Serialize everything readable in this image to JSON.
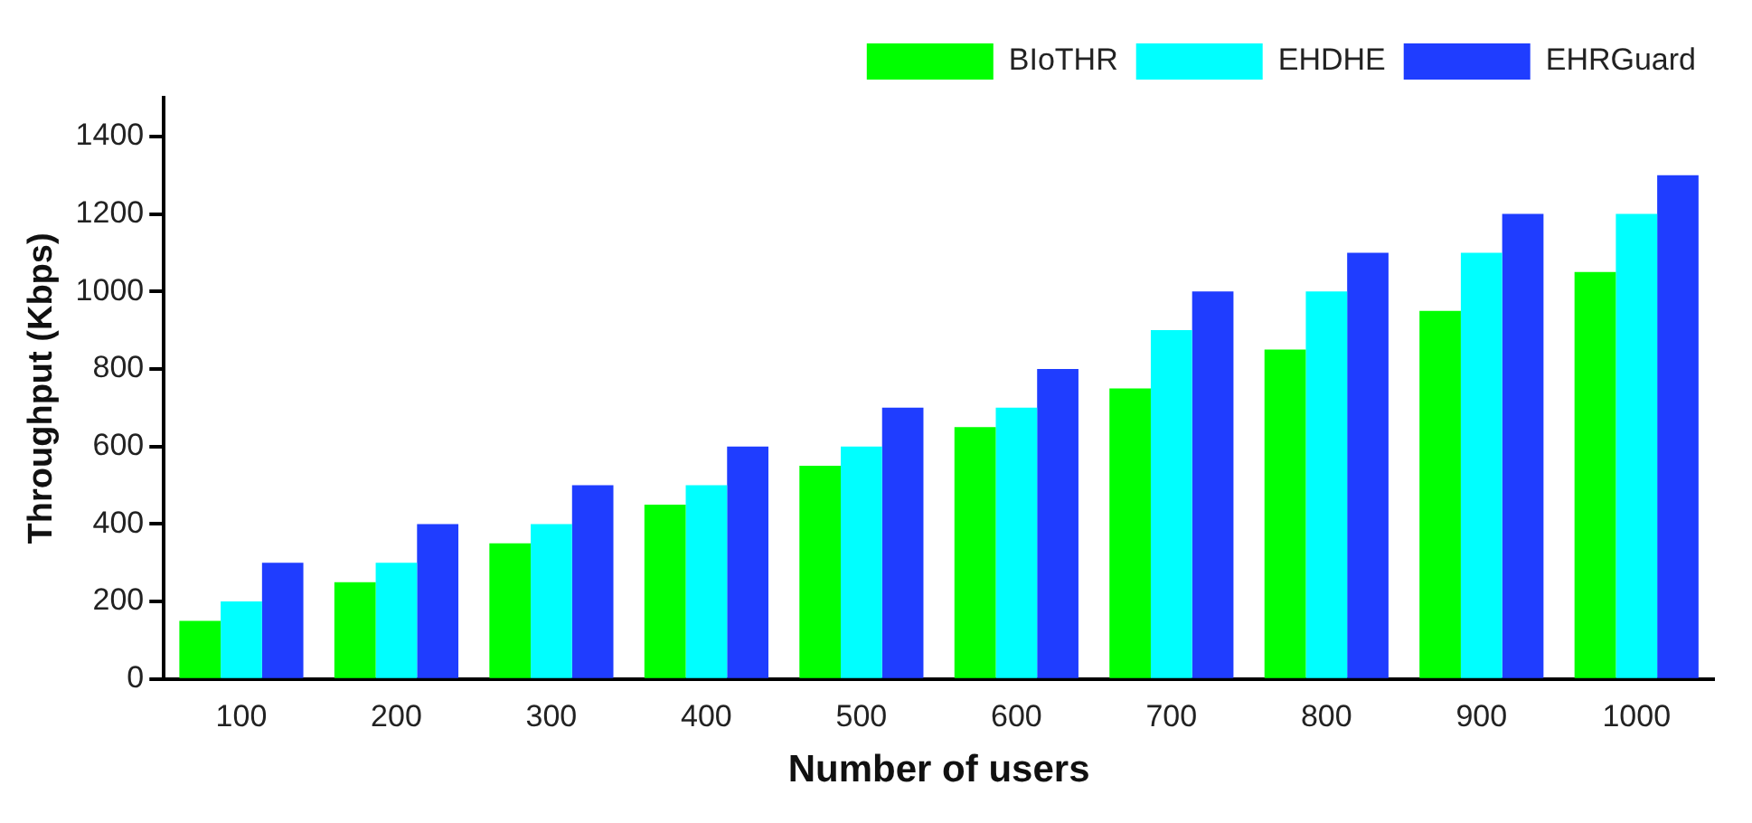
{
  "chart_data": {
    "type": "bar",
    "xlabel": "Number of users",
    "ylabel": "Throughput (Kbps)",
    "categories": [
      "100",
      "200",
      "300",
      "400",
      "500",
      "600",
      "700",
      "800",
      "900",
      "1000"
    ],
    "series": [
      {
        "name": "BIoTHR",
        "color": "#00ff00",
        "values": [
          150,
          250,
          350,
          450,
          550,
          650,
          750,
          850,
          950,
          1050
        ]
      },
      {
        "name": "EHDHE",
        "color": "#00ffff",
        "values": [
          200,
          300,
          400,
          500,
          600,
          700,
          900,
          1000,
          1100,
          1200
        ]
      },
      {
        "name": "EHRGuard",
        "color": "#1f3dff",
        "values": [
          300,
          400,
          500,
          600,
          700,
          800,
          1000,
          1100,
          1200,
          1300
        ]
      }
    ],
    "ylim": [
      0,
      1500
    ],
    "yticks": [
      0,
      200,
      400,
      600,
      800,
      1000,
      1200,
      1400
    ],
    "grid": false,
    "legend": "top right"
  }
}
